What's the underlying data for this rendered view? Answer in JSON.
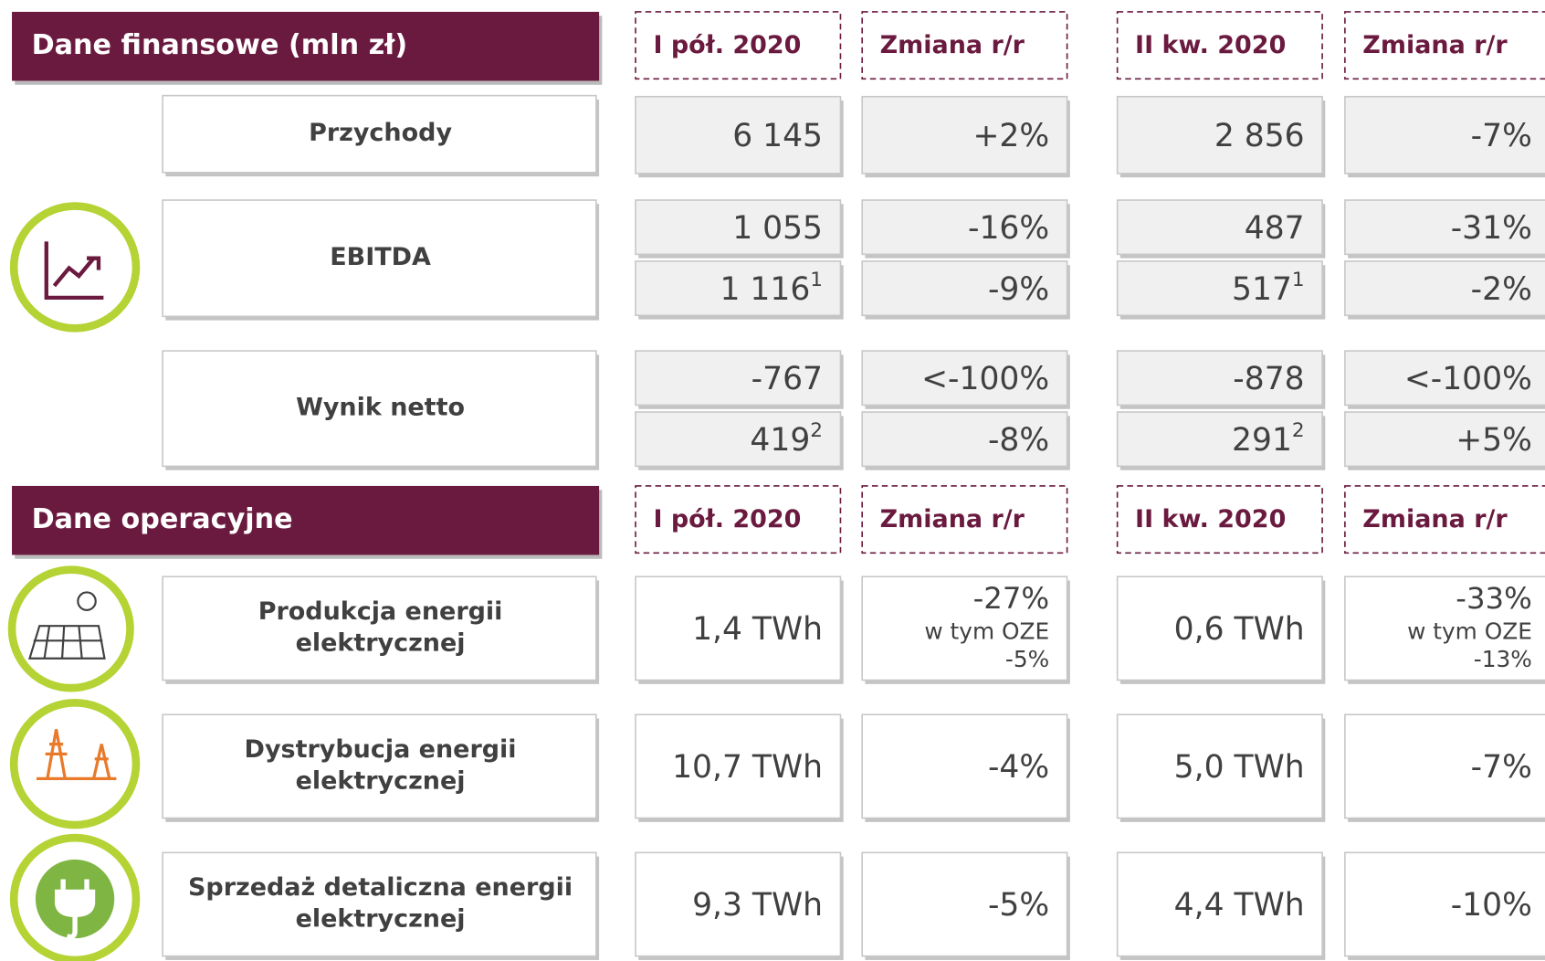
{
  "sections": [
    {
      "title": "Dane finansowe (mln zł)",
      "headers": [
        "I pół. 2020",
        "Zmiana r/r",
        "II kw. 2020",
        "Zmiana r/r"
      ],
      "rows": [
        {
          "label": [
            "Przychody"
          ],
          "lines": [
            [
              {
                "text": "6 145"
              },
              {
                "text": "+2%"
              },
              {
                "text": "2 856"
              },
              {
                "text": "-7%"
              }
            ]
          ]
        },
        {
          "label": [
            "EBITDA"
          ],
          "lines": [
            [
              {
                "text": "1 055"
              },
              {
                "text": "-16%"
              },
              {
                "text": "487"
              },
              {
                "text": "-31%"
              }
            ],
            [
              {
                "text": "1 116",
                "note": "1"
              },
              {
                "text": "-9%"
              },
              {
                "text": "517",
                "note": "1"
              },
              {
                "text": "-2%"
              }
            ]
          ]
        },
        {
          "label": [
            "Wynik netto"
          ],
          "lines": [
            [
              {
                "text": "-767"
              },
              {
                "text": "<-100%"
              },
              {
                "text": "-878"
              },
              {
                "text": "<-100%"
              }
            ],
            [
              {
                "text": "419",
                "note": "2"
              },
              {
                "text": "-8%"
              },
              {
                "text": "291",
                "note": "2"
              },
              {
                "text": "+5%"
              }
            ]
          ]
        }
      ]
    },
    {
      "title": "Dane operacyjne",
      "headers": [
        "I pół. 2020",
        "Zmiana r/r",
        "II kw. 2020",
        "Zmiana r/r"
      ],
      "rows": [
        {
          "label": [
            "Produkcja energii",
            "elektrycznej"
          ],
          "lines": [
            [
              {
                "text": "1,4 TWh"
              },
              {
                "text": "-27%",
                "detail": [
                  "w tym OZE",
                  "-5%"
                ]
              },
              {
                "text": "0,6 TWh"
              },
              {
                "text": "-33%",
                "detail": [
                  "w tym OZE",
                  "-13%"
                ]
              }
            ]
          ]
        },
        {
          "label": [
            "Dystrybucja energii",
            "elektrycznej"
          ],
          "lines": [
            [
              {
                "text": "10,7 TWh"
              },
              {
                "text": "-4%"
              },
              {
                "text": "5,0 TWh"
              },
              {
                "text": "-7%"
              }
            ]
          ]
        },
        {
          "label": [
            "Sprzedaż detaliczna energii",
            "elektrycznej"
          ],
          "lines": [
            [
              {
                "text": "9,3 TWh"
              },
              {
                "text": "-5%"
              },
              {
                "text": "4,4 TWh"
              },
              {
                "text": "-10%"
              }
            ]
          ]
        }
      ]
    }
  ]
}
